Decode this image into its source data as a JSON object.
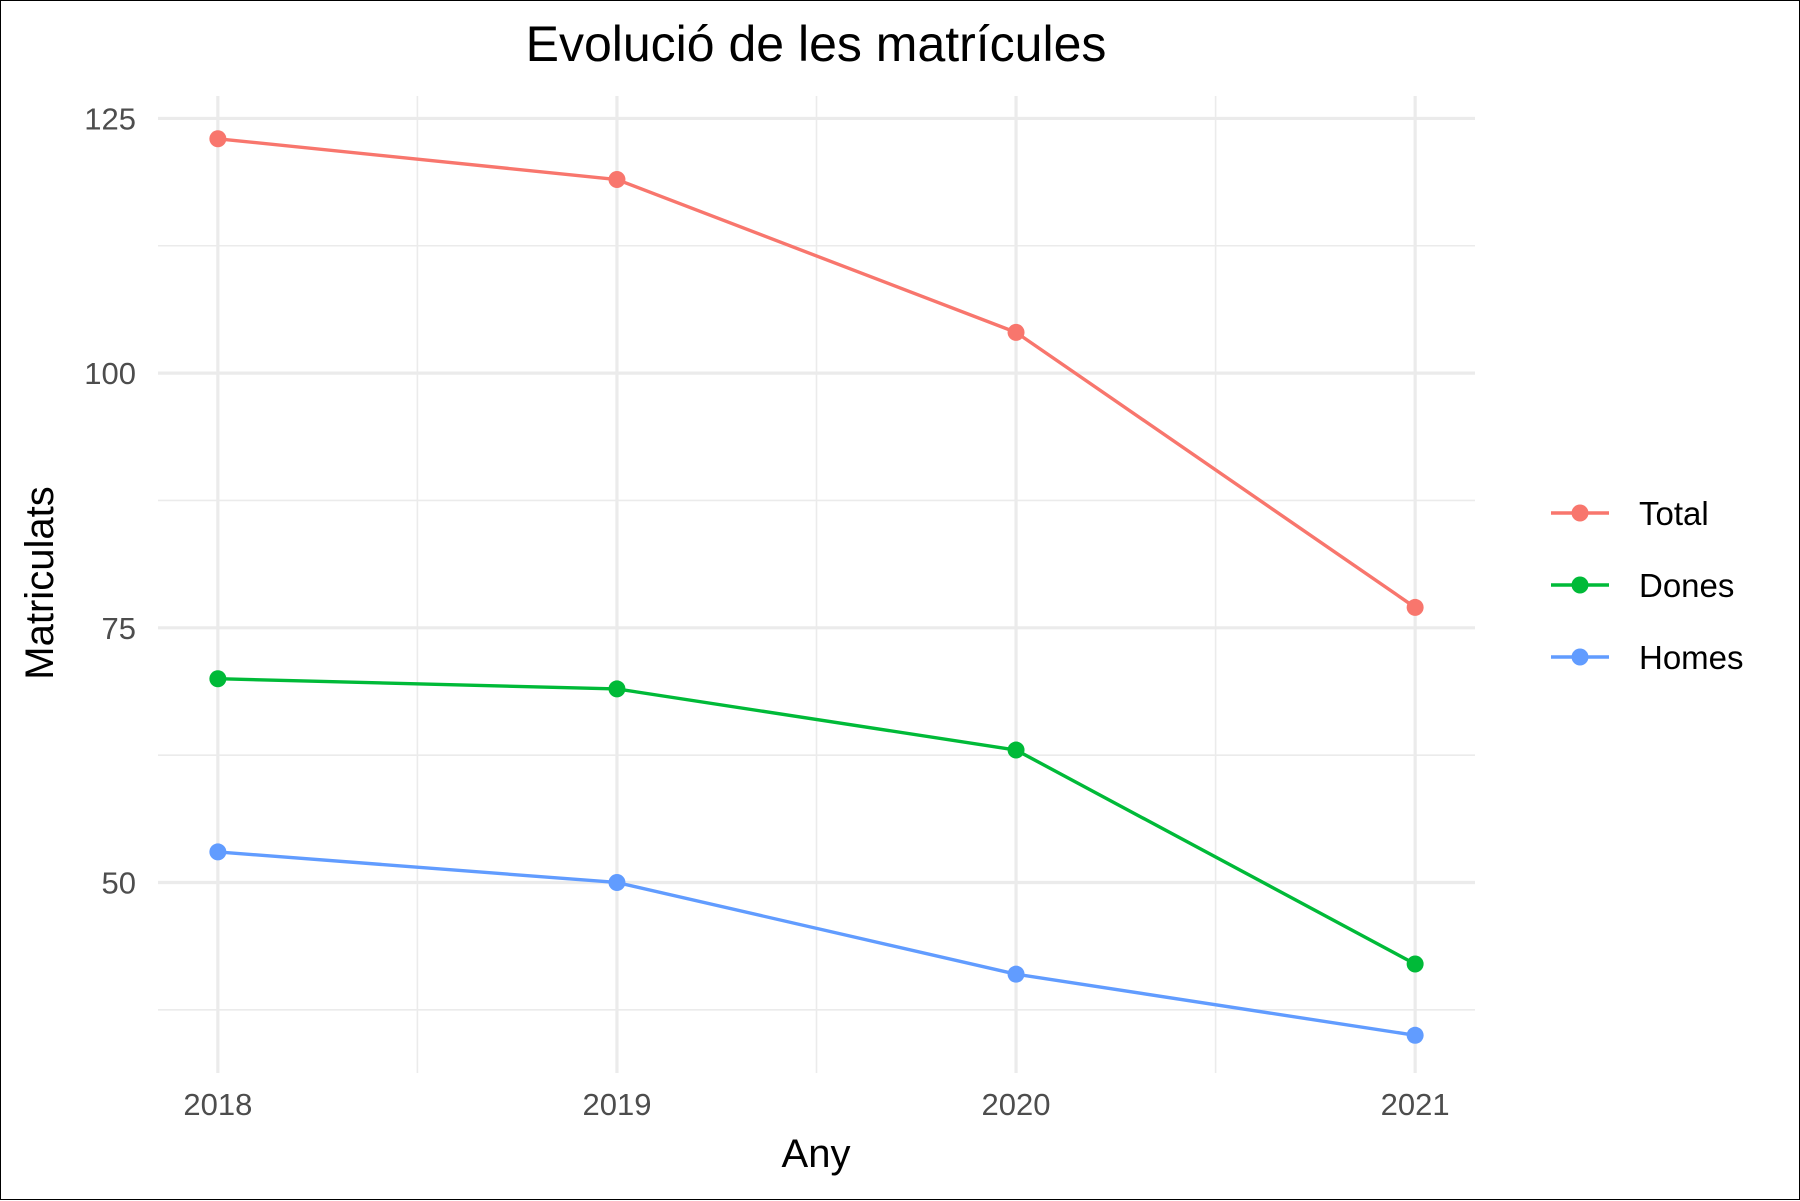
{
  "chart_data": {
    "type": "line",
    "title": "Evolució de les matrícules",
    "xlabel": "Any",
    "ylabel": "Matriculats",
    "x": [
      2018,
      2019,
      2020,
      2021
    ],
    "x_tick_labels": [
      "2018",
      "2019",
      "2020",
      "2021"
    ],
    "xlim": [
      2017.85,
      2021.15
    ],
    "ylim": [
      31.3,
      127.2
    ],
    "y_ticks": [
      50,
      75,
      100,
      125
    ],
    "y_tick_labels": [
      "50",
      "75",
      "100",
      "125"
    ],
    "grid": true,
    "legend_position": "right",
    "series": [
      {
        "name": "Total",
        "color": "#F8766D",
        "values": [
          123,
          119,
          104,
          77
        ]
      },
      {
        "name": "Dones",
        "color": "#00BA38",
        "values": [
          70,
          69,
          63,
          42
        ]
      },
      {
        "name": "Homes",
        "color": "#619CFF",
        "values": [
          53,
          50,
          41,
          35
        ]
      }
    ]
  }
}
